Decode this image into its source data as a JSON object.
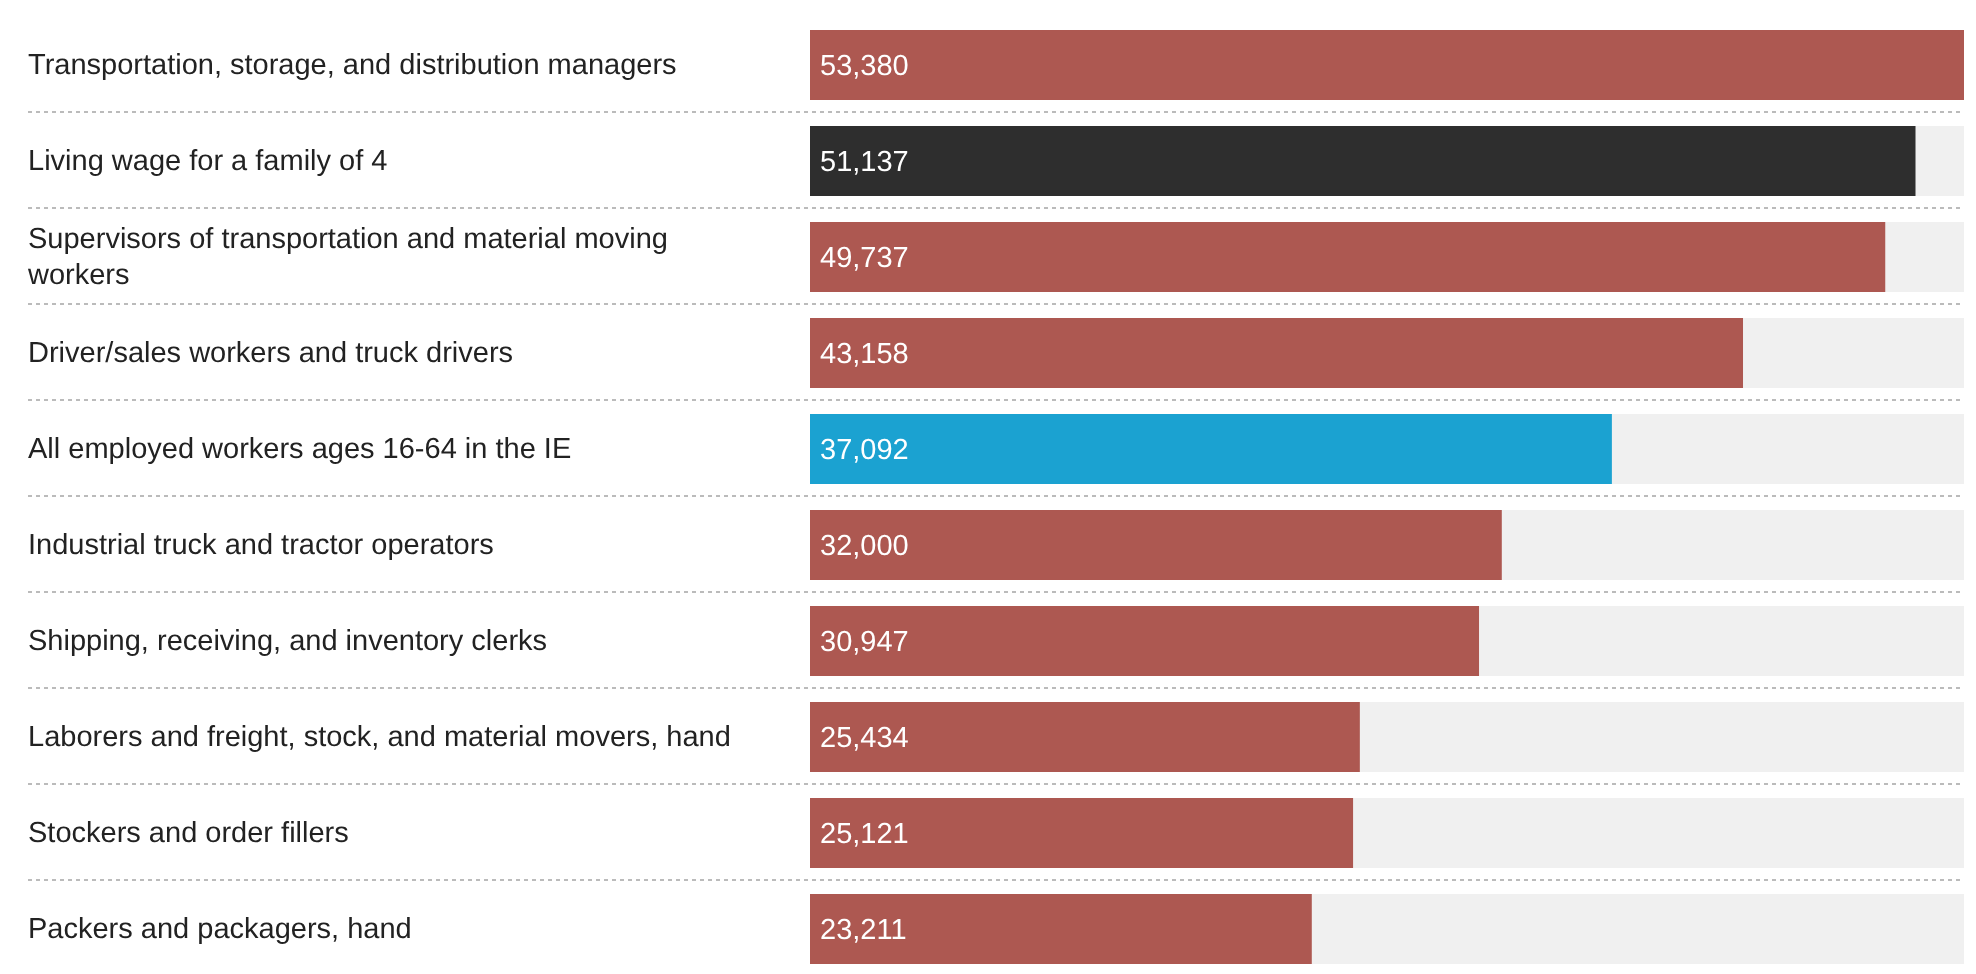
{
  "chart_data": {
    "type": "bar",
    "orientation": "horizontal",
    "value_labels": [
      "53,380",
      "51,137",
      "49,737",
      "43,158",
      "37,092",
      "32,000",
      "30,947",
      "25,434",
      "25,121",
      "23,211"
    ],
    "categories": [
      "Transportation, storage, and distribution managers",
      "Living wage for a family of 4",
      "Supervisors of transportation and material moving workers",
      "Driver/sales workers and truck drivers",
      "All employed workers ages 16-64 in the IE",
      "Industrial truck and tractor operators",
      "Shipping, receiving, and inventory clerks",
      "Laborers and freight, stock, and material movers, hand",
      "Stockers and order fillers",
      "Packers and packagers, hand"
    ],
    "values": [
      53380,
      51137,
      49737,
      43158,
      37092,
      32000,
      30947,
      25434,
      25121,
      23211
    ],
    "colors": [
      "#ad5851",
      "#2e2e2e",
      "#ad5851",
      "#ad5851",
      "#1ba2d1",
      "#ad5851",
      "#ad5851",
      "#ad5851",
      "#ad5851",
      "#ad5851"
    ]
  }
}
